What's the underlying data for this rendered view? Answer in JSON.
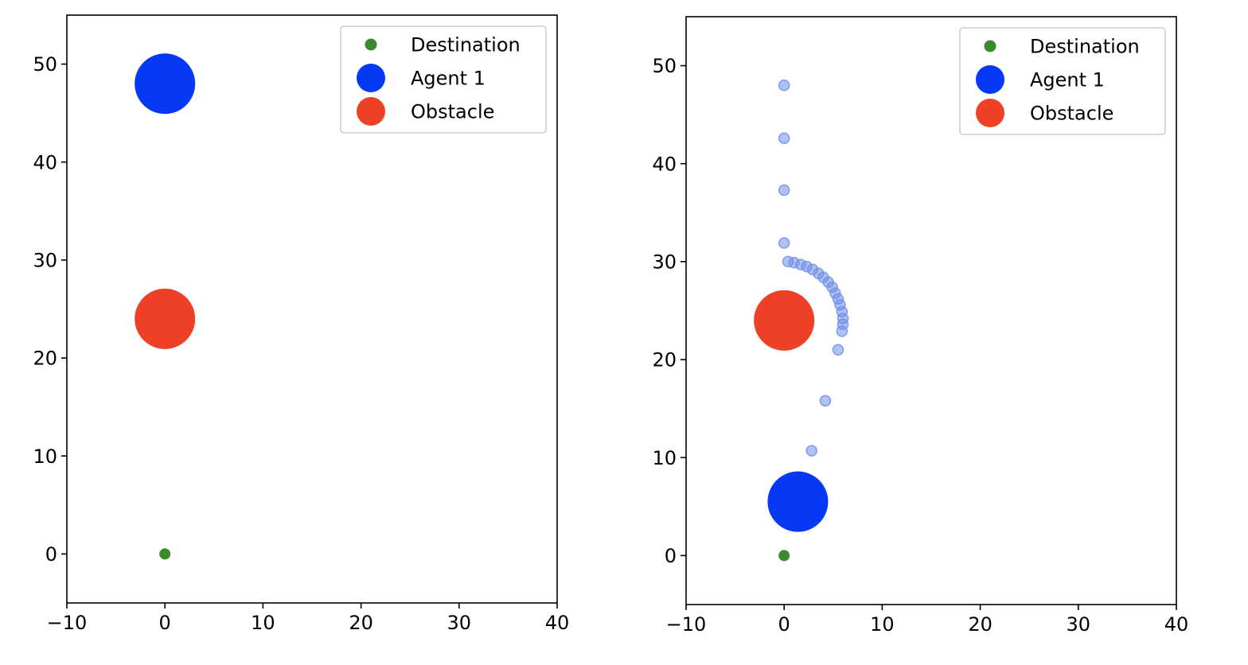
{
  "chart_data": [
    {
      "type": "scatter",
      "xlim": [
        -10,
        40
      ],
      "ylim": [
        -5,
        55
      ],
      "xticks": [
        -10,
        0,
        10,
        20,
        30,
        40
      ],
      "yticks": [
        0,
        10,
        20,
        30,
        40,
        50
      ],
      "xtick_labels": [
        "−10",
        "0",
        "10",
        "20",
        "30",
        "40"
      ],
      "ytick_labels": [
        "0",
        "10",
        "20",
        "30",
        "40",
        "50"
      ],
      "grid": false,
      "legend_position": "top-right",
      "legend": [
        "Destination",
        "Agent 1",
        "Obstacle"
      ],
      "series": [
        {
          "name": "Destination",
          "color": "#3a8a2e",
          "marker": "small-dot",
          "points": [
            [
              0,
              0
            ]
          ]
        },
        {
          "name": "Agent 1",
          "color": "#0539f5",
          "marker": "large-circle",
          "points": [
            [
              0,
              48
            ]
          ]
        },
        {
          "name": "Obstacle",
          "color": "#ee4026",
          "marker": "large-circle",
          "points": [
            [
              0,
              24
            ]
          ]
        }
      ],
      "trail": {
        "color": "#6f8ee8",
        "points": []
      }
    },
    {
      "type": "scatter",
      "xlim": [
        -10,
        40
      ],
      "ylim": [
        -5,
        55
      ],
      "xticks": [
        -10,
        0,
        10,
        20,
        30,
        40
      ],
      "yticks": [
        0,
        10,
        20,
        30,
        40,
        50
      ],
      "xtick_labels": [
        "−10",
        "0",
        "10",
        "20",
        "30",
        "40"
      ],
      "ytick_labels": [
        "0",
        "10",
        "20",
        "30",
        "40",
        "50"
      ],
      "grid": false,
      "legend_position": "top-right",
      "legend": [
        "Destination",
        "Agent 1",
        "Obstacle"
      ],
      "series": [
        {
          "name": "Destination",
          "color": "#3a8a2e",
          "marker": "small-dot",
          "points": [
            [
              0,
              0
            ]
          ]
        },
        {
          "name": "Agent 1",
          "color": "#0539f5",
          "marker": "large-circle",
          "points": [
            [
              1.4,
              5.5
            ]
          ]
        },
        {
          "name": "Obstacle",
          "color": "#ee4026",
          "marker": "large-circle",
          "points": [
            [
              0,
              24
            ]
          ]
        }
      ],
      "trail": {
        "color": "#6f8ee8",
        "points": [
          [
            0,
            48
          ],
          [
            0,
            42.6
          ],
          [
            0,
            37.3
          ],
          [
            0,
            31.9
          ],
          [
            0.4,
            30.0
          ],
          [
            1.0,
            29.9
          ],
          [
            1.7,
            29.7
          ],
          [
            2.3,
            29.5
          ],
          [
            2.9,
            29.2
          ],
          [
            3.5,
            28.8
          ],
          [
            4.0,
            28.4
          ],
          [
            4.5,
            27.9
          ],
          [
            4.9,
            27.4
          ],
          [
            5.2,
            26.8
          ],
          [
            5.5,
            26.2
          ],
          [
            5.7,
            25.6
          ],
          [
            5.9,
            24.9
          ],
          [
            6.0,
            24.2
          ],
          [
            6.0,
            23.6
          ],
          [
            5.9,
            22.9
          ],
          [
            5.5,
            21.0
          ],
          [
            4.2,
            15.8
          ],
          [
            2.8,
            10.7
          ]
        ]
      }
    }
  ]
}
